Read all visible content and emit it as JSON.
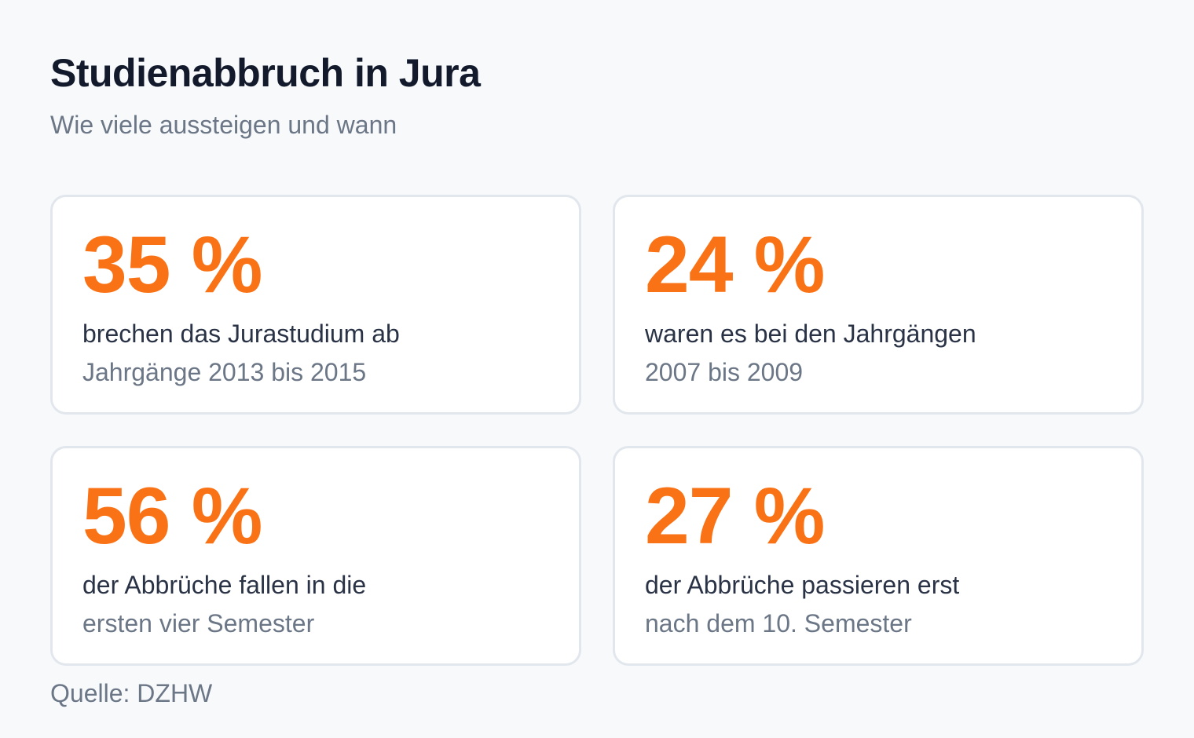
{
  "header": {
    "title": "Studienabbruch in Jura",
    "subtitle": "Wie viele aussteigen und wann"
  },
  "stats": [
    {
      "value": "35 %",
      "description": "brechen das Jurastudium ab",
      "detail": "Jahrgänge 2013 bis 2015"
    },
    {
      "value": "24 %",
      "description": "waren es bei den Jahrgängen",
      "detail": "2007 bis 2009"
    },
    {
      "value": "56 %",
      "description": "der Abbrüche fallen in die",
      "detail": "ersten vier Semester"
    },
    {
      "value": "27 %",
      "description": "der Abbrüche passieren erst",
      "detail": "nach dem 10. Semester"
    }
  ],
  "footer": {
    "source": "Quelle: DZHW"
  },
  "colors": {
    "accent": "#f97316",
    "background": "#f8f9fb",
    "card_border": "#e2e7ee",
    "title": "#121a2c",
    "muted": "#6b7686"
  }
}
